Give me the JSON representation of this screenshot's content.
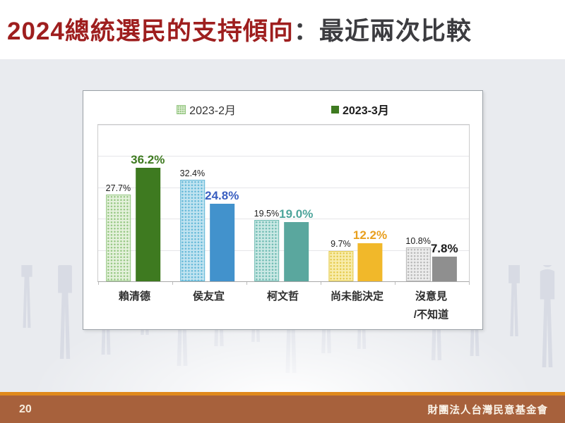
{
  "slide": {
    "title_main": "2024總統選民的支持傾向",
    "title_suffix": "：最近兩次比較"
  },
  "footer": {
    "page_number": "20",
    "organization": "財團法人台灣民意基金會"
  },
  "chart_data": {
    "type": "bar",
    "title": "2024總統選民的支持傾向：最近兩次比較",
    "categories": [
      "賴清德",
      "侯友宜",
      "柯文哲",
      "尚未能決定",
      "沒意見\n/不知道"
    ],
    "series": [
      {
        "name": "2023-2月",
        "style": "dotted-pattern",
        "values": [
          27.7,
          32.4,
          19.5,
          9.7,
          10.8
        ],
        "value_labels": [
          "27.7%",
          "32.4%",
          "19.5%",
          "9.7%",
          "10.8%"
        ],
        "bar_base_colors": [
          "#e4f1db",
          "#c0e3f0",
          "#c9e8e4",
          "#f8ecab",
          "#ececec"
        ],
        "bar_dot_colors": [
          "#94c681",
          "#64b8d8",
          "#6dbab1",
          "#e4ca4d",
          "#b7b7b7"
        ],
        "label_color": "#1d1d1d"
      },
      {
        "name": "2023-3月",
        "style": "solid",
        "values": [
          36.2,
          24.8,
          19.0,
          12.2,
          7.8
        ],
        "value_labels": [
          "36.2%",
          "24.8%",
          "19.0%",
          "12.2%",
          "7.8%"
        ],
        "bar_colors": [
          "#3e7a20",
          "#4292cc",
          "#5aa79e",
          "#f1b82a",
          "#8f8f8f"
        ],
        "label_colors": [
          "#3e7a20",
          "#3a5fc0",
          "#4da49b",
          "#e89f1e",
          "#1b1b1b"
        ]
      }
    ],
    "ylim": [
      0,
      50
    ],
    "gridline_step": 10,
    "grid": true,
    "legend_position": "top"
  }
}
